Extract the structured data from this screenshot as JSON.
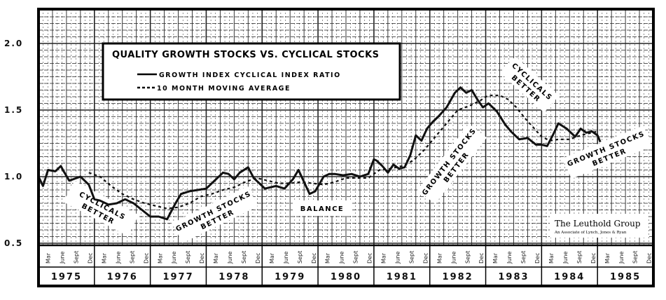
{
  "chart_data": {
    "type": "line",
    "title": "QUALITY GROWTH STOCKS VS. CYCLICAL STOCKS",
    "xlabel": "",
    "ylabel": "",
    "ylim": [
      0.5,
      2.2
    ],
    "yticks": [
      "2.0",
      "1.5",
      "1.0",
      "0.5"
    ],
    "ytick_values": [
      2.0,
      1.5,
      1.0,
      0.5
    ],
    "grid": true,
    "legend_position": "upper-left-inset",
    "years": [
      "1975",
      "1976",
      "1977",
      "1978",
      "1979",
      "1980",
      "1981",
      "1982",
      "1983",
      "1984",
      "1985"
    ],
    "months": [
      "Mar",
      "June",
      "Sept",
      "Dec"
    ],
    "series": [
      {
        "name": "GROWTH INDEX CYCLICAL INDEX RATIO",
        "style": "solid",
        "x": [
          1975.0,
          1975.08,
          1975.17,
          1975.3,
          1975.4,
          1975.45,
          1975.55,
          1975.75,
          1975.9,
          1976.0,
          1976.1,
          1976.25,
          1976.4,
          1976.55,
          1976.7,
          1976.85,
          1977.0,
          1977.15,
          1977.3,
          1977.45,
          1977.55,
          1977.7,
          1977.85,
          1978.0,
          1978.15,
          1978.3,
          1978.4,
          1978.5,
          1978.6,
          1978.75,
          1978.85,
          1978.95,
          1979.05,
          1979.25,
          1979.4,
          1979.55,
          1979.65,
          1979.85,
          1979.95,
          1980.1,
          1980.2,
          1980.3,
          1980.45,
          1980.6,
          1980.75,
          1980.9,
          1981.0,
          1981.05,
          1981.15,
          1981.25,
          1981.35,
          1981.45,
          1981.55,
          1981.65,
          1981.75,
          1981.85,
          1981.95,
          1982.05,
          1982.15,
          1982.3,
          1982.45,
          1982.55,
          1982.65,
          1982.75,
          1982.85,
          1982.95,
          1983.05,
          1983.2,
          1983.35,
          1983.45,
          1983.6,
          1983.75,
          1983.9,
          1984.0,
          1984.1,
          1984.2,
          1984.3,
          1984.45,
          1984.6,
          1984.7,
          1984.8,
          1984.9,
          1985.0,
          1985.05
        ],
        "values": [
          1.0,
          0.93,
          1.05,
          1.04,
          1.08,
          1.04,
          0.97,
          1.0,
          0.94,
          0.83,
          0.82,
          0.79,
          0.8,
          0.83,
          0.8,
          0.75,
          0.7,
          0.7,
          0.68,
          0.8,
          0.87,
          0.89,
          0.9,
          0.91,
          0.97,
          1.03,
          1.02,
          0.98,
          1.03,
          1.07,
          0.99,
          0.95,
          0.91,
          0.93,
          0.91,
          0.98,
          1.05,
          0.87,
          0.89,
          1.0,
          1.02,
          1.02,
          1.01,
          1.02,
          1.0,
          1.02,
          1.13,
          1.12,
          1.08,
          1.03,
          1.09,
          1.06,
          1.07,
          1.16,
          1.31,
          1.27,
          1.36,
          1.41,
          1.45,
          1.52,
          1.63,
          1.67,
          1.63,
          1.65,
          1.58,
          1.52,
          1.55,
          1.49,
          1.39,
          1.34,
          1.28,
          1.29,
          1.24,
          1.24,
          1.23,
          1.31,
          1.4,
          1.36,
          1.3,
          1.36,
          1.33,
          1.34,
          1.31,
          1.26
        ]
      },
      {
        "name": "10 MONTH MOVING AVERAGE",
        "style": "dashed",
        "x": [
          1975.9,
          1976.1,
          1976.3,
          1976.5,
          1976.7,
          1976.9,
          1977.1,
          1977.3,
          1977.5,
          1977.7,
          1977.9,
          1978.1,
          1978.3,
          1978.5,
          1978.7,
          1978.9,
          1979.1,
          1979.3,
          1979.5,
          1979.7,
          1979.9,
          1980.1,
          1980.3,
          1980.5,
          1980.7,
          1980.9,
          1981.1,
          1981.3,
          1981.5,
          1981.7,
          1981.9,
          1982.1,
          1982.3,
          1982.5,
          1982.7,
          1982.9,
          1983.0,
          1983.1,
          1983.25,
          1983.4,
          1983.55,
          1983.7,
          1983.85,
          1984.0,
          1984.15,
          1984.3,
          1984.5,
          1984.7,
          1984.9,
          1985.0
        ],
        "values": [
          1.03,
          1.0,
          0.93,
          0.87,
          0.83,
          0.8,
          0.78,
          0.76,
          0.77,
          0.8,
          0.85,
          0.87,
          0.9,
          0.92,
          0.96,
          0.99,
          0.97,
          0.95,
          0.95,
          0.96,
          0.95,
          0.94,
          0.96,
          0.99,
          0.99,
          0.99,
          1.05,
          1.06,
          1.08,
          1.12,
          1.2,
          1.3,
          1.4,
          1.5,
          1.53,
          1.57,
          1.6,
          1.61,
          1.61,
          1.58,
          1.52,
          1.44,
          1.37,
          1.3,
          1.27,
          1.28,
          1.28,
          1.31,
          1.33,
          1.34
        ]
      }
    ],
    "annotations": [
      {
        "text": "CYCLICALS BETTER",
        "position": "1976"
      },
      {
        "text": "GROWTH STOCKS BETTER",
        "position": "1977-1978"
      },
      {
        "text": "BALANCE",
        "position": "1979-1980"
      },
      {
        "text": "GROWTH STOCKS BETTER",
        "position": "1981-1982"
      },
      {
        "text": "CYCLICALS BETTER",
        "position": "1983"
      },
      {
        "text": "GROWTH STOCKS BETTER",
        "position": "1984-1985"
      }
    ]
  },
  "legend": {
    "title": "QUALITY GROWTH STOCKS VS. CYCLICAL STOCKS",
    "solid_label": "GROWTH INDEX CYCLICAL INDEX RATIO",
    "dashed_label": "10 MONTH MOVING AVERAGE"
  },
  "annotations": {
    "a1_line1": "CYCLICALS",
    "a1_line2": "BETTER",
    "a2_line1": "GROWTH STOCKS",
    "a2_line2": "BETTER",
    "a3": "BALANCE",
    "a4_line1": "GROWTH STOCKS",
    "a4_line2": "BETTER",
    "a5_line1": "CYCLICALS",
    "a5_line2": "BETTER",
    "a6_line1": "GROWTH STOCKS",
    "a6_line2": "BETTER"
  },
  "brand": {
    "name": "The Leuthold Group",
    "subtitle": "An Associate of Lynch, Jones & Ryan"
  },
  "colors": {
    "ink": "#111111",
    "grid": "#333333",
    "background": "#ffffff"
  }
}
